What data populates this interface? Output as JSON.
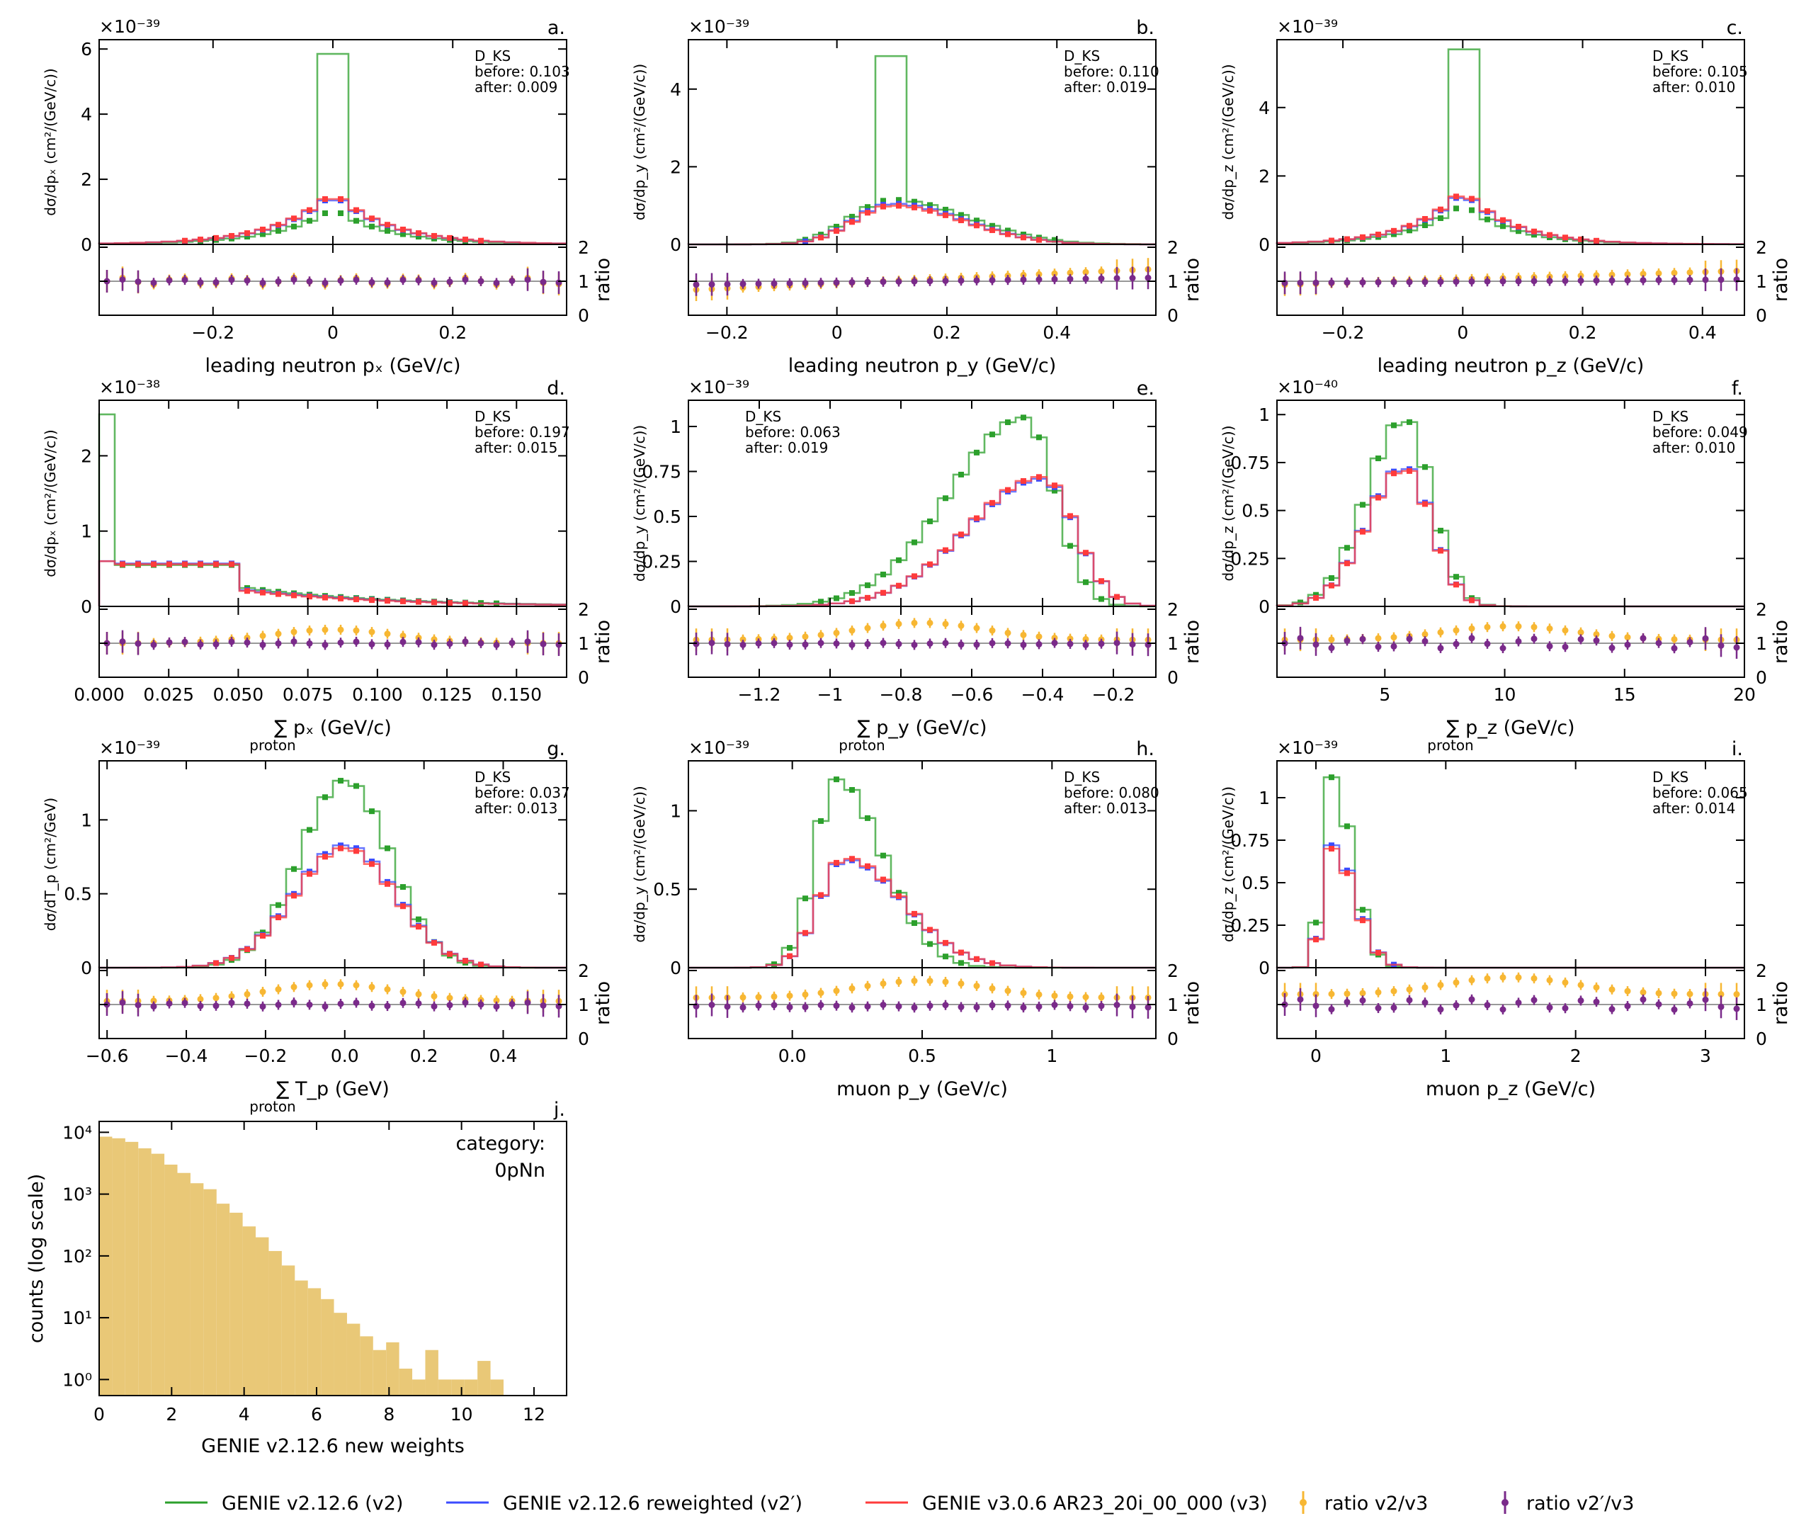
{
  "colors": {
    "v2": "#2ca02c",
    "v2p": "#3b4cff",
    "v3": "#ff3b3b",
    "r1": "#f7b733",
    "r2": "#7a2a8a",
    "hist": "#e9c877"
  },
  "legend": [
    {
      "key": "v2",
      "label": "GENIE v2.12.6 (v2)",
      "kind": "line"
    },
    {
      "key": "v2p",
      "label": "GENIE v2.12.6 reweighted (v2′)",
      "kind": "line"
    },
    {
      "key": "v3",
      "label": "GENIE v3.0.6 AR23_20i_00_000 (v3)",
      "kind": "line"
    },
    {
      "key": "r1",
      "label": "ratio v2/v3",
      "kind": "err"
    },
    {
      "key": "r2",
      "label": "ratio v2′/v3",
      "kind": "err"
    }
  ],
  "chart_data": [
    {
      "type": "line",
      "id": "a",
      "panel": "a.",
      "exp": "×10⁻³⁹",
      "ylabel": "dσ/dpₓ (cm²/(GeV/c))",
      "xlabel": "leading neutron pₓ (GeV/c)",
      "xlim": [
        -0.39,
        0.39
      ],
      "ylim": [
        0,
        6.2
      ],
      "yticks": [
        0,
        2,
        4,
        6
      ],
      "xticks": [
        -0.2,
        0.0,
        0.2
      ],
      "ks_pos": "right",
      "ks_title": "D_KS",
      "ks_before": "before: 0.103",
      "ks_after": "after: 0.009",
      "series": [
        {
          "name": "v2",
          "kind": "sym",
          "peak": 0,
          "width": 0.17,
          "height": 1.1,
          "spike": 5.85,
          "spikeW": 0.03
        },
        {
          "name": "v2p",
          "kind": "sym",
          "peak": 0,
          "width": 0.17,
          "height": 1.55
        },
        {
          "name": "v3",
          "kind": "sym",
          "peak": 0,
          "width": 0.17,
          "height": 1.6
        }
      ],
      "ratio1": {
        "base": 1.0,
        "amp": 0.1
      },
      "ratio2": {
        "base": 1.0,
        "amp": 0.05
      }
    },
    {
      "type": "line",
      "id": "b",
      "panel": "b.",
      "exp": "×10⁻³⁹",
      "ylabel": "dσ/dp_y (cm²/(GeV/c))",
      "xlabel": "leading neutron p_y (GeV/c)",
      "xlim": [
        -0.27,
        0.58
      ],
      "ylim": [
        0,
        5.2
      ],
      "yticks": [
        0,
        2,
        4
      ],
      "xticks": [
        -0.2,
        0.0,
        0.2,
        0.4
      ],
      "ks_pos": "right",
      "ks_title": "D_KS",
      "ks_before": "before: 0.110",
      "ks_after": "after: 0.019",
      "series": [
        {
          "name": "v2",
          "kind": "sym2",
          "peak": 0.1,
          "width": 0.15,
          "height": 1.15,
          "spike": 4.85,
          "spikeW": 0.03
        },
        {
          "name": "v2p",
          "kind": "sym2",
          "peak": 0.1,
          "width": 0.14,
          "height": 1.05
        },
        {
          "name": "v3",
          "kind": "sym2",
          "peak": 0.1,
          "width": 0.14,
          "height": 1.0
        }
      ],
      "ratio1": {
        "base": 0.75,
        "slope": 0.6
      },
      "ratio2": {
        "base": 0.9,
        "slope": 0.2
      }
    },
    {
      "type": "line",
      "id": "c",
      "panel": "c.",
      "exp": "×10⁻³⁹",
      "ylabel": "dσ/dp_z (cm²/(GeV/c))",
      "xlabel": "leading neutron p_z (GeV/c)",
      "xlim": [
        -0.31,
        0.47
      ],
      "ylim": [
        0,
        5.9
      ],
      "yticks": [
        0,
        2,
        4
      ],
      "xticks": [
        -0.2,
        0.0,
        0.2,
        0.4
      ],
      "ks_pos": "right",
      "ks_title": "D_KS",
      "ks_before": "before: 0.105",
      "ks_after": "after: 0.010",
      "series": [
        {
          "name": "v2",
          "kind": "sym",
          "peak": 0,
          "width": 0.15,
          "height": 1.2,
          "spike": 5.7,
          "spikeW": 0.03
        },
        {
          "name": "v2p",
          "kind": "sym",
          "peak": 0,
          "width": 0.15,
          "height": 1.55
        },
        {
          "name": "v3",
          "kind": "sym",
          "peak": 0,
          "width": 0.15,
          "height": 1.6
        }
      ],
      "ratio1": {
        "base": 0.9,
        "slope": 0.4
      },
      "ratio2": {
        "base": 0.95,
        "slope": 0.1
      }
    },
    {
      "type": "line",
      "id": "d",
      "panel": "d.",
      "exp": "×10⁻³⁸",
      "ylabel": "dσ/dpₓ (cm²/(GeV/c))",
      "xlabel": "∑ pₓ (GeV/c)",
      "xsub": "proton",
      "xlim": [
        0,
        0.168
      ],
      "ylim": [
        0,
        2.7
      ],
      "yticks": [
        0,
        1,
        2
      ],
      "xticks": [
        0.0,
        0.025,
        0.05,
        0.075,
        0.1,
        0.125,
        0.15
      ],
      "ks_pos": "right",
      "ks_title": "D_KS",
      "ks_before": "before: 0.197",
      "ks_after": "after: 0.015",
      "series": [
        {
          "name": "v2",
          "kind": "plateau",
          "height": 0.55,
          "edge": 0.052,
          "tail": 0.25,
          "spike": 2.55,
          "spikeW": 0.006
        },
        {
          "name": "v2p",
          "kind": "plateau",
          "height": 0.57,
          "edge": 0.052,
          "tail": 0.22,
          "first": 0.6
        },
        {
          "name": "v3",
          "kind": "plateau",
          "height": 0.56,
          "edge": 0.052,
          "tail": 0.21,
          "first": 0.6
        }
      ],
      "ratio1": {
        "base": 1.0,
        "bump": 0.4
      },
      "ratio2": {
        "base": 1.0,
        "amp": 0.05
      }
    },
    {
      "type": "line",
      "id": "e",
      "panel": "e.",
      "exp": "×10⁻³⁹",
      "ylabel": "dσ/dp_y (cm²/(GeV/c))",
      "xlabel": "∑ p_y (GeV/c)",
      "xsub": "proton",
      "xlim": [
        -1.4,
        -0.08
      ],
      "ylim": [
        0,
        1.13
      ],
      "yticks": [
        0.0,
        0.25,
        0.5,
        0.75,
        1.0
      ],
      "xticks": [
        -1.2,
        -1.0,
        -0.8,
        -0.6,
        -0.4,
        -0.2
      ],
      "ks_pos": "left",
      "ks_title": "D_KS",
      "ks_before": "before: 0.063",
      "ks_after": "after: 0.019",
      "series": [
        {
          "name": "v2",
          "kind": "peak",
          "peak": -0.45,
          "wl": 0.3,
          "wr": 0.12,
          "height": 1.05
        },
        {
          "name": "v2p",
          "kind": "peak",
          "peak": -0.4,
          "wl": 0.3,
          "wr": 0.13,
          "height": 0.71
        },
        {
          "name": "v3",
          "kind": "peak",
          "peak": -0.4,
          "wl": 0.3,
          "wr": 0.13,
          "height": 0.72
        }
      ],
      "ratio1": {
        "base": 1.1,
        "bump": 0.5
      },
      "ratio2": {
        "base": 0.98,
        "amp": 0.03
      }
    },
    {
      "type": "line",
      "id": "f",
      "panel": "f.",
      "exp": "×10⁻⁴⁰",
      "ylabel": "dσ/dp_z (cm²/(GeV/c))",
      "xlabel": "∑ p_z (GeV/c)",
      "xsub": "proton",
      "xlim": [
        0.5,
        20
      ],
      "ylim": [
        0,
        1.06
      ],
      "yticks": [
        0.0,
        0.25,
        0.5,
        0.75,
        1.0
      ],
      "xticks": [
        5,
        10,
        15,
        20
      ],
      "ks_pos": "right",
      "ks_title": "D_KS",
      "ks_before": "before: 0.049",
      "ks_after": "after: 0.010",
      "series": [
        {
          "name": "v2",
          "kind": "peak",
          "peak": 5.8,
          "wl": 2.2,
          "wr": 1.6,
          "height": 0.98
        },
        {
          "name": "v2p",
          "kind": "peak",
          "peak": 5.8,
          "wl": 2.2,
          "wr": 1.6,
          "height": 0.73
        },
        {
          "name": "v3",
          "kind": "peak",
          "peak": 5.8,
          "wl": 2.2,
          "wr": 1.6,
          "height": 0.72
        }
      ],
      "ratio1": {
        "base": 1.1,
        "bump": 0.4
      },
      "ratio2": {
        "base": 1.0,
        "amp": 0.15
      }
    },
    {
      "type": "line",
      "id": "g",
      "panel": "g.",
      "exp": "×10⁻³⁹",
      "ylabel": "dσ/dT_p (cm²/GeV)",
      "xlabel": "∑ T_p (GeV)",
      "xsub": "proton",
      "xlim": [
        -0.62,
        0.56
      ],
      "ylim": [
        0,
        1.38
      ],
      "yticks": [
        0.0,
        0.5,
        1.0
      ],
      "xticks": [
        -0.6,
        -0.4,
        -0.2,
        0.0,
        0.2,
        0.4
      ],
      "ks_pos": "right",
      "ks_title": "D_KS",
      "ks_before": "before: 0.037",
      "ks_after": "after: 0.013",
      "series": [
        {
          "name": "v2",
          "kind": "peak",
          "peak": 0,
          "wl": 0.16,
          "wr": 0.16,
          "height": 1.27
        },
        {
          "name": "v2p",
          "kind": "peak",
          "peak": 0,
          "wl": 0.18,
          "wr": 0.18,
          "height": 0.83
        },
        {
          "name": "v3",
          "kind": "peak",
          "peak": 0,
          "wl": 0.18,
          "wr": 0.18,
          "height": 0.81
        }
      ],
      "ratio1": {
        "base": 1.1,
        "bump": 0.5
      },
      "ratio2": {
        "base": 1.0,
        "amp": 0.06
      }
    },
    {
      "type": "line",
      "id": "h",
      "panel": "h.",
      "exp": "×10⁻³⁹",
      "ylabel": "dσ/dp_y (cm²/(GeV/c))",
      "xlabel": "muon p_y (GeV/c)",
      "xlim": [
        -0.4,
        1.4
      ],
      "ylim": [
        0,
        1.3
      ],
      "yticks": [
        0.0,
        0.5,
        1.0
      ],
      "xticks": [
        0.0,
        0.5,
        1.0
      ],
      "ks_pos": "right",
      "ks_title": "D_KS",
      "ks_before": "before: 0.080",
      "ks_after": "after: 0.013",
      "series": [
        {
          "name": "v2",
          "kind": "peak",
          "peak": 0.17,
          "wl": 0.12,
          "wr": 0.25,
          "height": 1.2
        },
        {
          "name": "v2p",
          "kind": "peak",
          "peak": 0.2,
          "wl": 0.14,
          "wr": 0.32,
          "height": 0.69
        },
        {
          "name": "v3",
          "kind": "peak",
          "peak": 0.2,
          "wl": 0.14,
          "wr": 0.32,
          "height": 0.7
        }
      ],
      "ratio1": {
        "base": 1.2,
        "bump": 0.5
      },
      "ratio2": {
        "base": 0.95,
        "amp": 0.04
      }
    },
    {
      "type": "line",
      "id": "i",
      "panel": "i.",
      "exp": "×10⁻³⁹",
      "ylabel": "dσ/dp_z (cm²/(GeV/c))",
      "xlabel": "muon p_z (GeV/c)",
      "xlim": [
        -0.3,
        3.3
      ],
      "ylim": [
        0,
        1.2
      ],
      "yticks": [
        0.0,
        0.25,
        0.5,
        0.75,
        1.0
      ],
      "xticks": [
        0,
        1,
        2,
        3
      ],
      "ks_pos": "right",
      "ks_title": "D_KS",
      "ks_before": "before: 0.065",
      "ks_after": "after: 0.014",
      "series": [
        {
          "name": "v2",
          "kind": "peak",
          "peak": 0.12,
          "wl": 0.1,
          "wr": 0.22,
          "height": 1.12
        },
        {
          "name": "v2p",
          "kind": "peak",
          "peak": 0.12,
          "wl": 0.1,
          "wr": 0.25,
          "height": 0.72
        },
        {
          "name": "v3",
          "kind": "peak",
          "peak": 0.12,
          "wl": 0.1,
          "wr": 0.25,
          "height": 0.7
        }
      ],
      "ratio1": {
        "base": 1.3,
        "bump": 0.5
      },
      "ratio2": {
        "base": 1.0,
        "amp": 0.15
      }
    },
    {
      "type": "bar",
      "id": "j",
      "panel": "j.",
      "ylabel": "counts (log scale)",
      "xlabel": "GENIE v2.12.6 new weights",
      "category_title": "category:",
      "category_value": "0pNn",
      "xlim": [
        0,
        12.9
      ],
      "ylim_log": [
        0.55,
        15000
      ],
      "xticks": [
        0,
        2,
        4,
        6,
        8,
        10,
        12
      ],
      "yticks": [
        "10⁰",
        "10¹",
        "10²",
        "10³",
        "10⁴"
      ],
      "bin_width": 0.36,
      "counts": [
        8500,
        8000,
        7000,
        5500,
        4500,
        3000,
        2200,
        1500,
        1200,
        700,
        500,
        300,
        200,
        120,
        70,
        40,
        30,
        20,
        12,
        8,
        5,
        3,
        4,
        1.5,
        1,
        3,
        1,
        1,
        1,
        2,
        1,
        0,
        0,
        0,
        0,
        0,
        0,
        0,
        0,
        0,
        0,
        0,
        0,
        0,
        0,
        0,
        0,
        0,
        0,
        0,
        0,
        0,
        0,
        0,
        0,
        0,
        0,
        0,
        0,
        0,
        0,
        0,
        0,
        0,
        0,
        0,
        0,
        0,
        0,
        0,
        0,
        0,
        0,
        0,
        0,
        0
      ]
    }
  ]
}
